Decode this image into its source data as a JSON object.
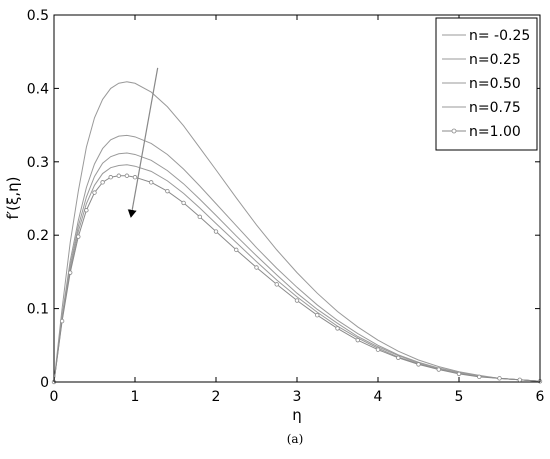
{
  "chart_data": {
    "type": "line",
    "xlabel": "η",
    "ylabel": "f′(ξ,η)",
    "xlim": [
      0,
      6
    ],
    "ylim": [
      0,
      0.5
    ],
    "xticks": [
      "0",
      "1",
      "2",
      "3",
      "4",
      "5",
      "6"
    ],
    "yticks": [
      "0",
      "0.1",
      "0.2",
      "0.3",
      "0.4",
      "0.5"
    ],
    "grid": false,
    "legend_position": "top-right",
    "caption": "(a)",
    "x": [
      0,
      0.1,
      0.2,
      0.3,
      0.4,
      0.5,
      0.6,
      0.7,
      0.8,
      0.9,
      1.0,
      1.2,
      1.4,
      1.6,
      1.8,
      2.0,
      2.25,
      2.5,
      2.75,
      3.0,
      3.25,
      3.5,
      3.75,
      4.0,
      4.25,
      4.5,
      4.75,
      5.0,
      5.25,
      5.5,
      5.75,
      6.0
    ],
    "series": [
      {
        "name": "n= -0.25",
        "marker": "none",
        "values": [
          0,
          0.1,
          0.19,
          0.26,
          0.32,
          0.36,
          0.385,
          0.4,
          0.407,
          0.409,
          0.407,
          0.395,
          0.375,
          0.349,
          0.319,
          0.289,
          0.251,
          0.214,
          0.18,
          0.149,
          0.121,
          0.096,
          0.075,
          0.057,
          0.042,
          0.03,
          0.021,
          0.014,
          0.009,
          0.005,
          0.003,
          0.001
        ]
      },
      {
        "name": "n=0.25",
        "marker": "none",
        "values": [
          0,
          0.09,
          0.165,
          0.22,
          0.265,
          0.297,
          0.318,
          0.33,
          0.335,
          0.336,
          0.334,
          0.325,
          0.31,
          0.29,
          0.267,
          0.243,
          0.213,
          0.183,
          0.155,
          0.129,
          0.105,
          0.084,
          0.066,
          0.05,
          0.037,
          0.027,
          0.019,
          0.013,
          0.008,
          0.005,
          0.003,
          0.001
        ]
      },
      {
        "name": "n=0.50",
        "marker": "none",
        "values": [
          0,
          0.087,
          0.158,
          0.212,
          0.252,
          0.28,
          0.298,
          0.307,
          0.311,
          0.312,
          0.31,
          0.302,
          0.288,
          0.27,
          0.249,
          0.227,
          0.199,
          0.172,
          0.146,
          0.121,
          0.099,
          0.08,
          0.062,
          0.048,
          0.036,
          0.026,
          0.018,
          0.012,
          0.008,
          0.005,
          0.003,
          0.001
        ]
      },
      {
        "name": "n=0.75",
        "marker": "none",
        "values": [
          0,
          0.085,
          0.153,
          0.205,
          0.243,
          0.268,
          0.284,
          0.292,
          0.295,
          0.296,
          0.294,
          0.287,
          0.274,
          0.257,
          0.237,
          0.216,
          0.19,
          0.164,
          0.139,
          0.116,
          0.095,
          0.076,
          0.06,
          0.046,
          0.034,
          0.025,
          0.017,
          0.012,
          0.008,
          0.005,
          0.003,
          0.001
        ]
      },
      {
        "name": "n=1.00",
        "marker": "circle",
        "values": [
          0,
          0.083,
          0.149,
          0.198,
          0.234,
          0.258,
          0.272,
          0.279,
          0.281,
          0.281,
          0.279,
          0.272,
          0.26,
          0.244,
          0.225,
          0.205,
          0.18,
          0.156,
          0.133,
          0.111,
          0.091,
          0.073,
          0.057,
          0.044,
          0.033,
          0.024,
          0.017,
          0.011,
          0.007,
          0.005,
          0.003,
          0.001
        ]
      }
    ],
    "annotation": {
      "type": "arrow",
      "from": [
        1.28,
        0.428
      ],
      "to": [
        0.95,
        0.225
      ]
    }
  }
}
